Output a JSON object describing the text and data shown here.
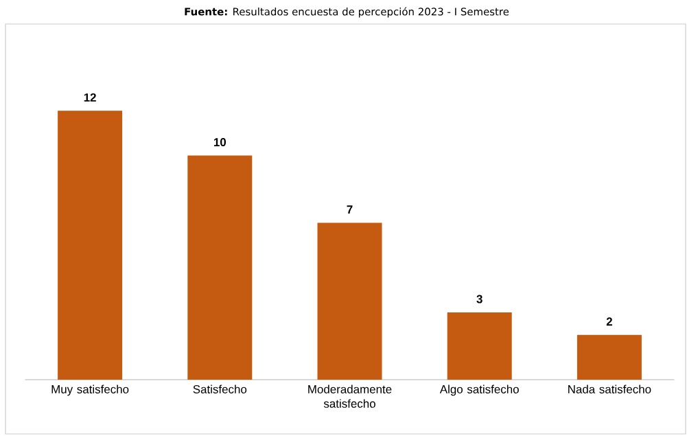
{
  "chart_data": {
    "type": "bar",
    "categories": [
      "Muy satisfecho",
      "Satisfecho",
      "Moderadamente satisfecho",
      "Algo satisfecho",
      "Nada satisfecho"
    ],
    "values": [
      12,
      10,
      7,
      3,
      2
    ],
    "color": "#c55a11",
    "data_labels": true,
    "annotations": [
      "**Fuente:** Resultados encuesta de percepción 2023 - I Semestre"
    ]
  }
}
